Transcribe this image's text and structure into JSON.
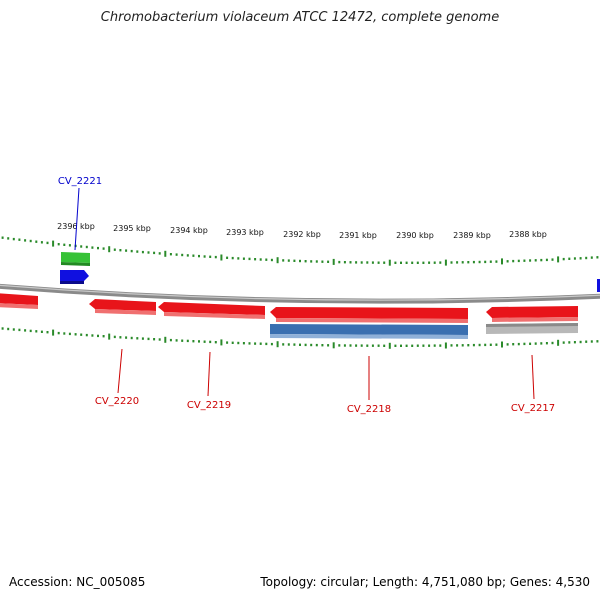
{
  "header": {
    "title": "Chromobacterium violaceum ATCC 12472, complete genome"
  },
  "footer": {
    "accession": "Accession: NC_005085",
    "summary": "Topology: circular; Length: 4,751,080 bp; Genes: 4,530"
  },
  "colors": {
    "backbone": "#8a8a8a",
    "ticks": "#2a8a2a",
    "red_gene": "#e8141a",
    "green_gene": "#36c236",
    "blue_gene": "#1010e0",
    "blue_gene_2": "#3a6fb0",
    "grey_gene": "#b8b8b8",
    "label_red": "#cc0000",
    "label_blue": "#0000cc"
  },
  "map": {
    "kbp_labels": [
      "2396 kbp",
      "2395 kbp",
      "2394 kbp",
      "2393 kbp",
      "2392 kbp",
      "2391 kbp",
      "2390 kbp",
      "2389 kbp",
      "2388 kbp"
    ],
    "gene_labels": {
      "cv2221": "CV_2221",
      "cv2220": "CV_2220",
      "cv2219": "CV_2219",
      "cv2218": "CV_2218",
      "cv2217": "CV_2217"
    }
  }
}
